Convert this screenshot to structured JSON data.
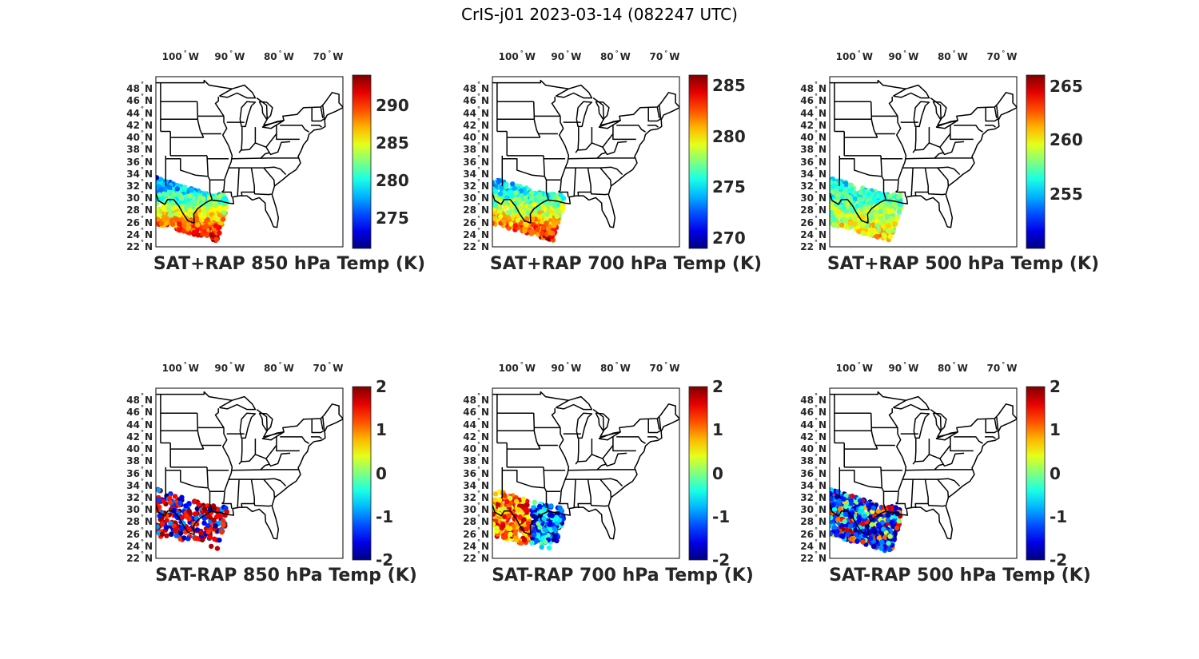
{
  "figure": {
    "title": "CrIS-j01 2023-03-14 (082247 UTC)"
  },
  "map_axes": {
    "lon_ticks": [
      {
        "deg": 100,
        "label": "100",
        "hemi": "W"
      },
      {
        "deg": 90,
        "label": "90",
        "hemi": "W"
      },
      {
        "deg": 80,
        "label": "80",
        "hemi": "W"
      },
      {
        "deg": 70,
        "label": "70",
        "hemi": "W"
      }
    ],
    "lat_ticks": [
      {
        "deg": 48,
        "label": "48",
        "hemi": "N"
      },
      {
        "deg": 46,
        "label": "46",
        "hemi": "N"
      },
      {
        "deg": 44,
        "label": "44",
        "hemi": "N"
      },
      {
        "deg": 42,
        "label": "42",
        "hemi": "N"
      },
      {
        "deg": 40,
        "label": "40",
        "hemi": "N"
      },
      {
        "deg": 38,
        "label": "38",
        "hemi": "N"
      },
      {
        "deg": 36,
        "label": "36",
        "hemi": "N"
      },
      {
        "deg": 34,
        "label": "34",
        "hemi": "N"
      },
      {
        "deg": 32,
        "label": "32",
        "hemi": "N"
      },
      {
        "deg": 30,
        "label": "30",
        "hemi": "N"
      },
      {
        "deg": 28,
        "label": "28",
        "hemi": "N"
      },
      {
        "deg": 26,
        "label": "26",
        "hemi": "N"
      },
      {
        "deg": 24,
        "label": "24",
        "hemi": "N"
      },
      {
        "deg": 22,
        "label": "22",
        "hemi": "N"
      }
    ],
    "lon_range": [
      -105,
      -67
    ],
    "lat_range": [
      22,
      50
    ]
  },
  "colormap": "jet",
  "panels": [
    {
      "id": "sat-rap-sum-850",
      "label": "SAT+RAP 850 hPa Temp (K)",
      "mode": "temp",
      "colorbar": {
        "min": 271,
        "max": 294,
        "ticks": [
          {
            "v": 290,
            "t": "290"
          },
          {
            "v": 285,
            "t": "285"
          },
          {
            "v": 280,
            "t": "280"
          },
          {
            "v": 275,
            "t": "275"
          }
        ]
      }
    },
    {
      "id": "sat-rap-sum-700",
      "label": "SAT+RAP 700 hPa Temp (K)",
      "mode": "temp",
      "colorbar": {
        "min": 269,
        "max": 286,
        "ticks": [
          {
            "v": 285,
            "t": "285"
          },
          {
            "v": 280,
            "t": "280"
          },
          {
            "v": 275,
            "t": "275"
          },
          {
            "v": 270,
            "t": "270"
          }
        ]
      }
    },
    {
      "id": "sat-rap-sum-500",
      "label": "SAT+RAP 500 hPa Temp (K)",
      "mode": "temp",
      "colorbar": {
        "min": 250,
        "max": 266,
        "ticks": [
          {
            "v": 265,
            "t": "265"
          },
          {
            "v": 260,
            "t": "260"
          },
          {
            "v": 255,
            "t": "255"
          }
        ]
      }
    },
    {
      "id": "sat-rap-diff-850",
      "label": "SAT-RAP 850 hPa Temp (K)",
      "mode": "diff",
      "colorbar": {
        "min": -2,
        "max": 2,
        "ticks": [
          {
            "v": 2,
            "t": "2"
          },
          {
            "v": 1,
            "t": "1"
          },
          {
            "v": 0,
            "t": "0"
          },
          {
            "v": -1,
            "t": "-1"
          },
          {
            "v": -2,
            "t": "-2"
          }
        ]
      }
    },
    {
      "id": "sat-rap-diff-700",
      "label": "SAT-RAP 700 hPa Temp (K)",
      "mode": "diff",
      "colorbar": {
        "min": -2,
        "max": 2,
        "ticks": [
          {
            "v": 2,
            "t": "2"
          },
          {
            "v": 1,
            "t": "1"
          },
          {
            "v": 0,
            "t": "0"
          },
          {
            "v": -1,
            "t": "-1"
          },
          {
            "v": -2,
            "t": "-2"
          }
        ]
      }
    },
    {
      "id": "sat-rap-diff-500",
      "label": "SAT-RAP 500 hPa Temp (K)",
      "mode": "diff",
      "colorbar": {
        "min": -2,
        "max": 2,
        "ticks": [
          {
            "v": 2,
            "t": "2"
          },
          {
            "v": 1,
            "t": "1"
          },
          {
            "v": 0,
            "t": "0"
          },
          {
            "v": -1,
            "t": "-1"
          },
          {
            "v": -2,
            "t": "-2"
          }
        ]
      }
    }
  ]
}
